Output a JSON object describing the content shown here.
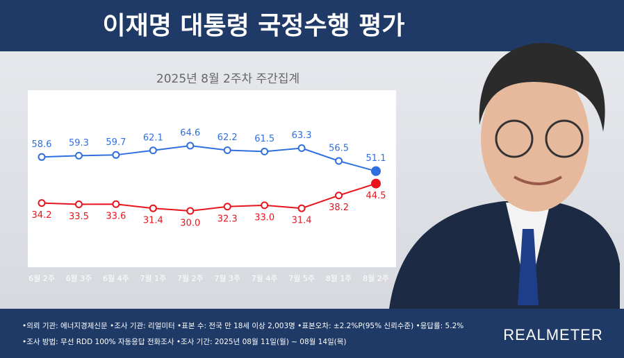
{
  "chart_data": {
    "type": "line",
    "title": "이재명 대통령 국정수행 평가",
    "subtitle": "2025년 8월 2주차 주간집계",
    "categories": [
      "6월 2주",
      "6월 3주",
      "6월 4주",
      "7월 1주",
      "7월 2주",
      "7월 3주",
      "7월 4주",
      "7월 5주",
      "8월 1주",
      "8월 2주"
    ],
    "series": [
      {
        "color": "#2f6fe0",
        "values": [
          58.6,
          59.3,
          59.7,
          62.1,
          64.6,
          62.2,
          61.5,
          63.3,
          56.5,
          51.1
        ],
        "value_labels": [
          "58.6",
          "59.3",
          "59.7",
          "62.1",
          "64.6",
          "62.2",
          "61.5",
          "63.3",
          "56.5",
          "51.1"
        ]
      },
      {
        "color": "#e8141c",
        "values": [
          34.2,
          33.5,
          33.6,
          31.4,
          30.0,
          32.3,
          33.0,
          31.4,
          38.2,
          44.5
        ],
        "value_labels": [
          "34.2",
          "33.5",
          "33.6",
          "31.4",
          "30.0",
          "32.3",
          "33.0",
          "31.4",
          "38.2",
          "44.5"
        ]
      }
    ],
    "notes": [
      "•의뢰 기관: 에너지경제신문  •조사 기관: 리얼미터  •표본 수: 전국 만 18세 이상 2,003명  •표본오차: ±2.2%P(95% 신뢰수준)  •응답률: 5.2%",
      "•조사 방법: 무선 RDD 100% 자동응답 전화조사  •조사 기간: 2025년 08월 11일(월) ~ 08월 14일(목)"
    ],
    "brand": "REALMETER"
  }
}
